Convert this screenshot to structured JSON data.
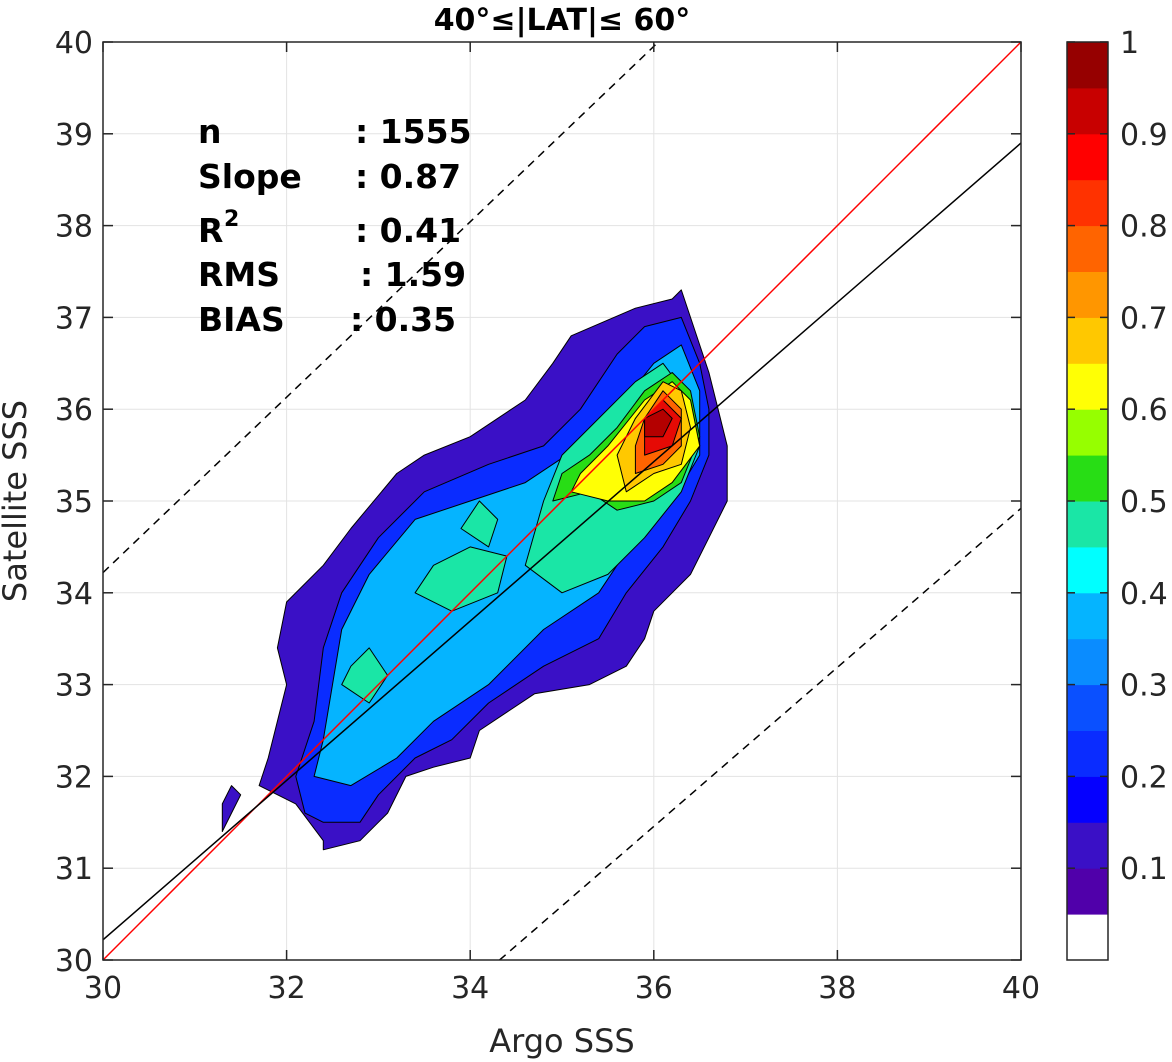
{
  "chart_data": {
    "type": "contour",
    "title": "40°≤|LAT|≤ 60°",
    "xlabel": "Argo SSS",
    "ylabel": "Satellite SSS",
    "xlim": [
      30,
      40
    ],
    "ylim": [
      30,
      40
    ],
    "x_ticks": [
      "30",
      "32",
      "34",
      "36",
      "38",
      "40"
    ],
    "y_ticks": [
      "30",
      "31",
      "32",
      "33",
      "34",
      "35",
      "36",
      "37",
      "38",
      "39",
      "40"
    ],
    "grid": true,
    "stats": {
      "n_label": "n",
      "n_value": ": 1555",
      "slope_label": "Slope",
      "slope_value": ": 0.87",
      "r2_label": "R",
      "r2_sup": "2",
      "r2_value": ": 0.41",
      "rms_label": "RMS",
      "rms_value": ": 1.59",
      "bias_label": "BIAS",
      "bias_value": ": 0.35"
    },
    "lines": [
      {
        "role": "one-to-one",
        "color": "#ff0000",
        "style": "solid",
        "points": [
          [
            30,
            30
          ],
          [
            40,
            40
          ]
        ]
      },
      {
        "role": "regression",
        "color": "#000000",
        "style": "solid",
        "points": [
          [
            30,
            30.22
          ],
          [
            40,
            38.9
          ]
        ]
      },
      {
        "role": "upper-bound",
        "color": "#000000",
        "style": "dashed",
        "points": [
          [
            30,
            34.22
          ],
          [
            36.05,
            40
          ]
        ]
      },
      {
        "role": "lower-bound",
        "color": "#000000",
        "style": "dashed",
        "points": [
          [
            34.32,
            30
          ],
          [
            40,
            34.92
          ]
        ]
      }
    ],
    "contour_levels": [
      {
        "level": 0.1,
        "color": "#3a10c6",
        "polygons": [
          [
            [
              32.1,
              31.7
            ],
            [
              32.4,
              31.3
            ],
            [
              32.4,
              31.2
            ],
            [
              32.8,
              31.3
            ],
            [
              33.1,
              31.6
            ],
            [
              33.3,
              32.0
            ],
            [
              33.6,
              32.1
            ],
            [
              34.0,
              32.2
            ],
            [
              34.1,
              32.5
            ],
            [
              34.7,
              32.9
            ],
            [
              35.3,
              33.0
            ],
            [
              35.7,
              33.2
            ],
            [
              35.9,
              33.5
            ],
            [
              36.0,
              33.8
            ],
            [
              36.4,
              34.2
            ],
            [
              36.6,
              34.6
            ],
            [
              36.8,
              35.0
            ],
            [
              36.8,
              35.6
            ],
            [
              36.7,
              36.0
            ],
            [
              36.6,
              36.4
            ],
            [
              36.4,
              37.0
            ],
            [
              36.3,
              37.3
            ],
            [
              36.2,
              37.2
            ],
            [
              35.8,
              37.1
            ],
            [
              35.1,
              36.8
            ],
            [
              34.9,
              36.5
            ],
            [
              34.6,
              36.1
            ],
            [
              34.0,
              35.7
            ],
            [
              33.5,
              35.5
            ],
            [
              33.2,
              35.3
            ],
            [
              32.7,
              34.7
            ],
            [
              32.4,
              34.3
            ],
            [
              32.0,
              33.9
            ],
            [
              31.9,
              33.4
            ],
            [
              32.0,
              33.0
            ],
            [
              31.9,
              32.6
            ],
            [
              31.8,
              32.2
            ],
            [
              31.7,
              31.9
            ]
          ],
          [
            [
              31.3,
              31.7
            ],
            [
              31.4,
              31.9
            ],
            [
              31.5,
              31.8
            ],
            [
              31.4,
              31.6
            ],
            [
              31.3,
              31.4
            ]
          ]
        ]
      },
      {
        "level": 0.2,
        "color": "#0a2cff",
        "polygons": [
          [
            [
              32.2,
              31.6
            ],
            [
              32.4,
              31.5
            ],
            [
              32.8,
              31.5
            ],
            [
              33.0,
              31.8
            ],
            [
              33.4,
              32.2
            ],
            [
              33.8,
              32.4
            ],
            [
              34.2,
              32.8
            ],
            [
              34.8,
              33.2
            ],
            [
              35.4,
              33.5
            ],
            [
              35.7,
              34.0
            ],
            [
              36.1,
              34.5
            ],
            [
              36.4,
              35.0
            ],
            [
              36.6,
              35.5
            ],
            [
              36.6,
              36.0
            ],
            [
              36.5,
              36.5
            ],
            [
              36.3,
              37.0
            ],
            [
              35.9,
              36.9
            ],
            [
              35.6,
              36.6
            ],
            [
              35.2,
              36.0
            ],
            [
              34.8,
              35.6
            ],
            [
              34.2,
              35.4
            ],
            [
              33.5,
              35.1
            ],
            [
              33.0,
              34.6
            ],
            [
              32.6,
              34.0
            ],
            [
              32.4,
              33.4
            ],
            [
              32.3,
              32.6
            ],
            [
              32.1,
              32.0
            ]
          ]
        ]
      },
      {
        "level": 0.3,
        "color": "#05b4ff",
        "polygons": [
          [
            [
              32.3,
              32.0
            ],
            [
              32.7,
              31.9
            ],
            [
              33.2,
              32.2
            ],
            [
              33.6,
              32.6
            ],
            [
              34.2,
              33.0
            ],
            [
              34.8,
              33.6
            ],
            [
              35.4,
              34.0
            ],
            [
              35.8,
              34.6
            ],
            [
              36.2,
              35.0
            ],
            [
              36.5,
              35.5
            ],
            [
              36.5,
              36.2
            ],
            [
              36.3,
              36.7
            ],
            [
              36.0,
              36.5
            ],
            [
              35.6,
              36.0
            ],
            [
              35.2,
              35.6
            ],
            [
              34.6,
              35.2
            ],
            [
              34.0,
              35.0
            ],
            [
              33.4,
              34.8
            ],
            [
              32.9,
              34.2
            ],
            [
              32.6,
              33.6
            ],
            [
              32.5,
              33.0
            ],
            [
              32.4,
              32.4
            ]
          ]
        ]
      },
      {
        "level": 0.4,
        "color": "#1ae6a6",
        "polygons": [
          [
            [
              34.6,
              34.3
            ],
            [
              35.0,
              34.0
            ],
            [
              35.5,
              34.2
            ],
            [
              35.9,
              34.6
            ],
            [
              36.3,
              35.1
            ],
            [
              36.5,
              35.6
            ],
            [
              36.4,
              36.1
            ],
            [
              36.1,
              36.5
            ],
            [
              35.8,
              36.3
            ],
            [
              35.3,
              35.8
            ],
            [
              35.0,
              35.5
            ],
            [
              34.8,
              35.0
            ]
          ],
          [
            [
              33.4,
              34.0
            ],
            [
              33.8,
              33.8
            ],
            [
              34.3,
              34.0
            ],
            [
              34.4,
              34.4
            ],
            [
              34.0,
              34.5
            ],
            [
              33.6,
              34.3
            ]
          ],
          [
            [
              32.6,
              33.0
            ],
            [
              32.9,
              32.8
            ],
            [
              33.1,
              33.1
            ],
            [
              32.9,
              33.4
            ],
            [
              32.7,
              33.2
            ]
          ],
          [
            [
              33.9,
              34.7
            ],
            [
              34.2,
              34.5
            ],
            [
              34.3,
              34.8
            ],
            [
              34.1,
              35.0
            ]
          ]
        ]
      },
      {
        "level": 0.5,
        "color": "#28dd15",
        "polygons": [
          [
            [
              34.9,
              35.0
            ],
            [
              35.3,
              35.1
            ],
            [
              35.6,
              34.9
            ],
            [
              36.0,
              35.0
            ],
            [
              36.3,
              35.2
            ],
            [
              36.5,
              35.7
            ],
            [
              36.4,
              36.2
            ],
            [
              36.2,
              36.4
            ],
            [
              35.9,
              36.2
            ],
            [
              35.6,
              35.8
            ],
            [
              35.3,
              35.5
            ],
            [
              35.0,
              35.3
            ]
          ]
        ]
      },
      {
        "level": 0.6,
        "color": "#ffff05",
        "polygons": [
          [
            [
              35.1,
              35.1
            ],
            [
              35.5,
              35.0
            ],
            [
              35.9,
              35.0
            ],
            [
              36.2,
              35.2
            ],
            [
              36.5,
              35.6
            ],
            [
              36.4,
              36.1
            ],
            [
              36.2,
              36.3
            ],
            [
              35.9,
              36.1
            ],
            [
              35.5,
              35.6
            ],
            [
              35.2,
              35.3
            ]
          ]
        ]
      },
      {
        "level": 0.7,
        "color": "#ffc800",
        "polygons": [
          [
            [
              35.7,
              35.1
            ],
            [
              36.0,
              35.3
            ],
            [
              36.3,
              35.4
            ],
            [
              36.4,
              35.8
            ],
            [
              36.3,
              36.2
            ],
            [
              36.1,
              36.3
            ],
            [
              35.8,
              35.9
            ],
            [
              35.6,
              35.5
            ]
          ]
        ]
      },
      {
        "level": 0.8,
        "color": "#ff6400",
        "polygons": [
          [
            [
              35.8,
              35.3
            ],
            [
              36.1,
              35.4
            ],
            [
              36.3,
              35.6
            ],
            [
              36.3,
              36.0
            ],
            [
              36.1,
              36.2
            ],
            [
              35.9,
              35.9
            ],
            [
              35.8,
              35.6
            ]
          ]
        ]
      },
      {
        "level": 0.9,
        "color": "#e60a05",
        "polygons": [
          [
            [
              35.9,
              35.5
            ],
            [
              36.2,
              35.6
            ],
            [
              36.3,
              35.9
            ],
            [
              36.1,
              36.1
            ],
            [
              35.9,
              35.9
            ]
          ]
        ]
      },
      {
        "level": 1.0,
        "color": "#b40000",
        "polygons": [
          [
            [
              35.9,
              35.7
            ],
            [
              36.1,
              35.7
            ],
            [
              36.2,
              35.9
            ],
            [
              36.1,
              36.0
            ],
            [
              35.9,
              35.9
            ]
          ]
        ]
      }
    ],
    "colorbar": {
      "ticks": [
        "0.1",
        "0.2",
        "0.3",
        "0.4",
        "0.5",
        "0.6",
        "0.7",
        "0.8",
        "0.9",
        "1"
      ],
      "bands": [
        "#ffffff",
        "#5000aa",
        "#3a10c6",
        "#0500ff",
        "#0a2cff",
        "#0a50ff",
        "#0a8cff",
        "#05b4ff",
        "#00ffff",
        "#1ae6a6",
        "#28dd15",
        "#96ff00",
        "#ffff05",
        "#ffc800",
        "#ff9600",
        "#ff6400",
        "#ff3200",
        "#ff0000",
        "#c80000",
        "#960000"
      ]
    }
  }
}
